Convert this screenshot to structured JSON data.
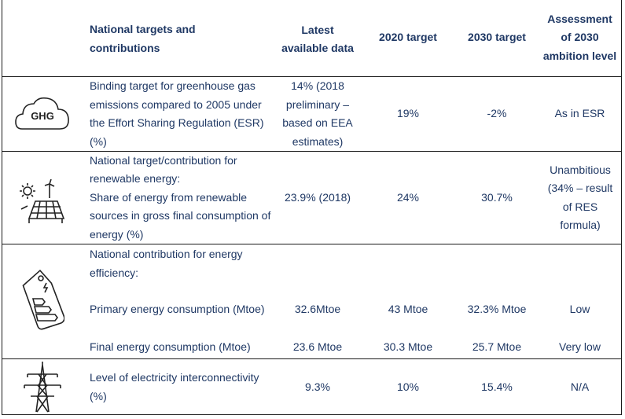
{
  "header": {
    "targets": "National targets and contributions",
    "latest": "Latest available data",
    "t2020": "2020 target",
    "t2030": "2030 target",
    "assessment": "Assessment of 2030 ambition level"
  },
  "rows": {
    "ghg": {
      "icon_label": "GHG",
      "icon": "cloud-ghg-icon",
      "target": "Binding target for greenhouse gas emissions compared to 2005 under the Effort Sharing Regulation (ESR) (%)",
      "latest": "14% (2018 preliminary – based on EEA estimates)",
      "t2020": "19%",
      "t2030": "-2%",
      "assessment": "As in ESR"
    },
    "res": {
      "icon": "solar-wind-icon",
      "target_line1": "National target/contribution for renewable energy:",
      "target_line2": "Share of energy from renewable sources in gross final consumption of energy (%)",
      "latest": "23.9% (2018)",
      "t2020": "24%",
      "t2030": "30.7%",
      "assessment": "Unambitious (34% – result of RES formula)"
    },
    "efficiency": {
      "icon": "energy-label-icon",
      "heading": "National contribution for energy efficiency:",
      "primary": {
        "label": "Primary energy consumption (Mtoe)",
        "latest": "32.6Mtoe",
        "t2020": "43 Mtoe",
        "t2030": "32.3% Mtoe",
        "assessment": "Low"
      },
      "final": {
        "label": "Final energy consumption (Mtoe)",
        "latest": "23.6 Mtoe",
        "t2020": "30.3 Mtoe",
        "t2030": "25.7 Mtoe",
        "assessment": "Very low"
      }
    },
    "interconnect": {
      "icon": "power-pylon-icon",
      "target": "Level of electricity interconnectivity (%)",
      "latest": "9.3%",
      "t2020": "10%",
      "t2030": "15.4%",
      "assessment": "N/A"
    }
  }
}
